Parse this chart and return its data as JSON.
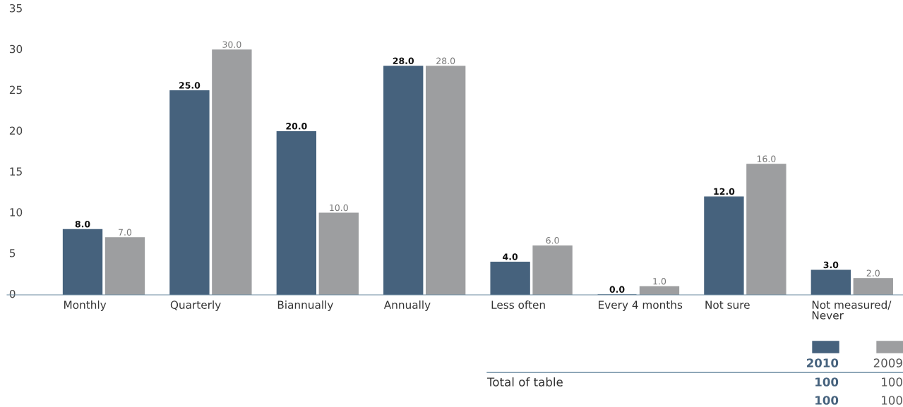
{
  "chart_data": {
    "type": "bar",
    "categories": [
      "Monthly",
      "Quarterly",
      "Biannually",
      "Annually",
      "Less often",
      "Every 4 months",
      "Not sure",
      "Not measured/\nNever"
    ],
    "series": [
      {
        "name": "2010",
        "color": "#46627d",
        "values": [
          8,
          25,
          20,
          28,
          4,
          0,
          12,
          3
        ],
        "value_labels": [
          "8.0",
          "25.0",
          "20.0",
          "28.0",
          "4.0",
          "0.0",
          "12.0",
          "3.0"
        ]
      },
      {
        "name": "2009",
        "color": "#9d9ea0",
        "values": [
          7,
          30,
          10,
          28,
          6,
          1,
          16,
          2
        ],
        "value_labels": [
          "7.0",
          "30.0",
          "10.0",
          "28.0",
          "6.0",
          "1.0",
          "16.0",
          "2.0"
        ]
      }
    ],
    "ylim": [
      0,
      35
    ],
    "yticks": [
      0,
      5,
      10,
      15,
      20,
      25,
      30,
      35
    ],
    "grid": false,
    "legend": "bottom right",
    "annotations": [
      "Total of table",
      "100",
      "100",
      "100",
      "100"
    ]
  }
}
